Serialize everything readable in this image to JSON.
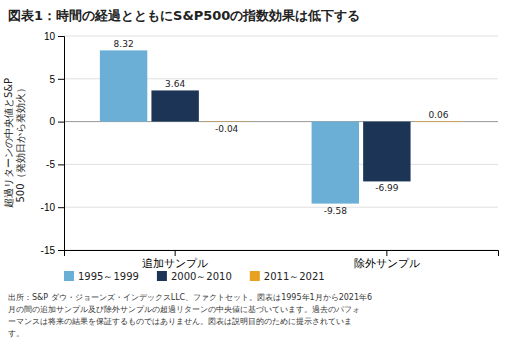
{
  "chart_data": {
    "type": "bar",
    "title": "図表1：時間の経過とともにS&P500の指数効果は低下する",
    "ylabel": "超過リターンの中央値とS&P\n500（発効日から発効火）",
    "footnote": "出所：S&P ダウ・ジョーンズ・インデックスLLC、ファクトセット。図表は1995年1月から2021年6\n月の間の追加サンプル及び除外サンプルの超過リターンの中央値に基づいています。過去のパフォ\nーマンスは将来の結果を保証するものではありません。図表は説明目的のために提示されていま\nす。",
    "categories": [
      "追加サンプル",
      "除外サンプル"
    ],
    "series": [
      {
        "name": "1995～1999",
        "color": "#6BAED6",
        "values": [
          8.32,
          -9.58
        ]
      },
      {
        "name": "2000～2010",
        "color": "#1C3557",
        "values": [
          3.64,
          -6.99
        ]
      },
      {
        "name": "2011～2021",
        "color": "#E8A020",
        "values": [
          -0.04,
          0.06
        ]
      }
    ],
    "ylim": [
      -15,
      10
    ],
    "yticks": [
      -15,
      -10,
      -5,
      0,
      5,
      10
    ],
    "grid": true,
    "data_labels": true,
    "legend": "bottom"
  }
}
